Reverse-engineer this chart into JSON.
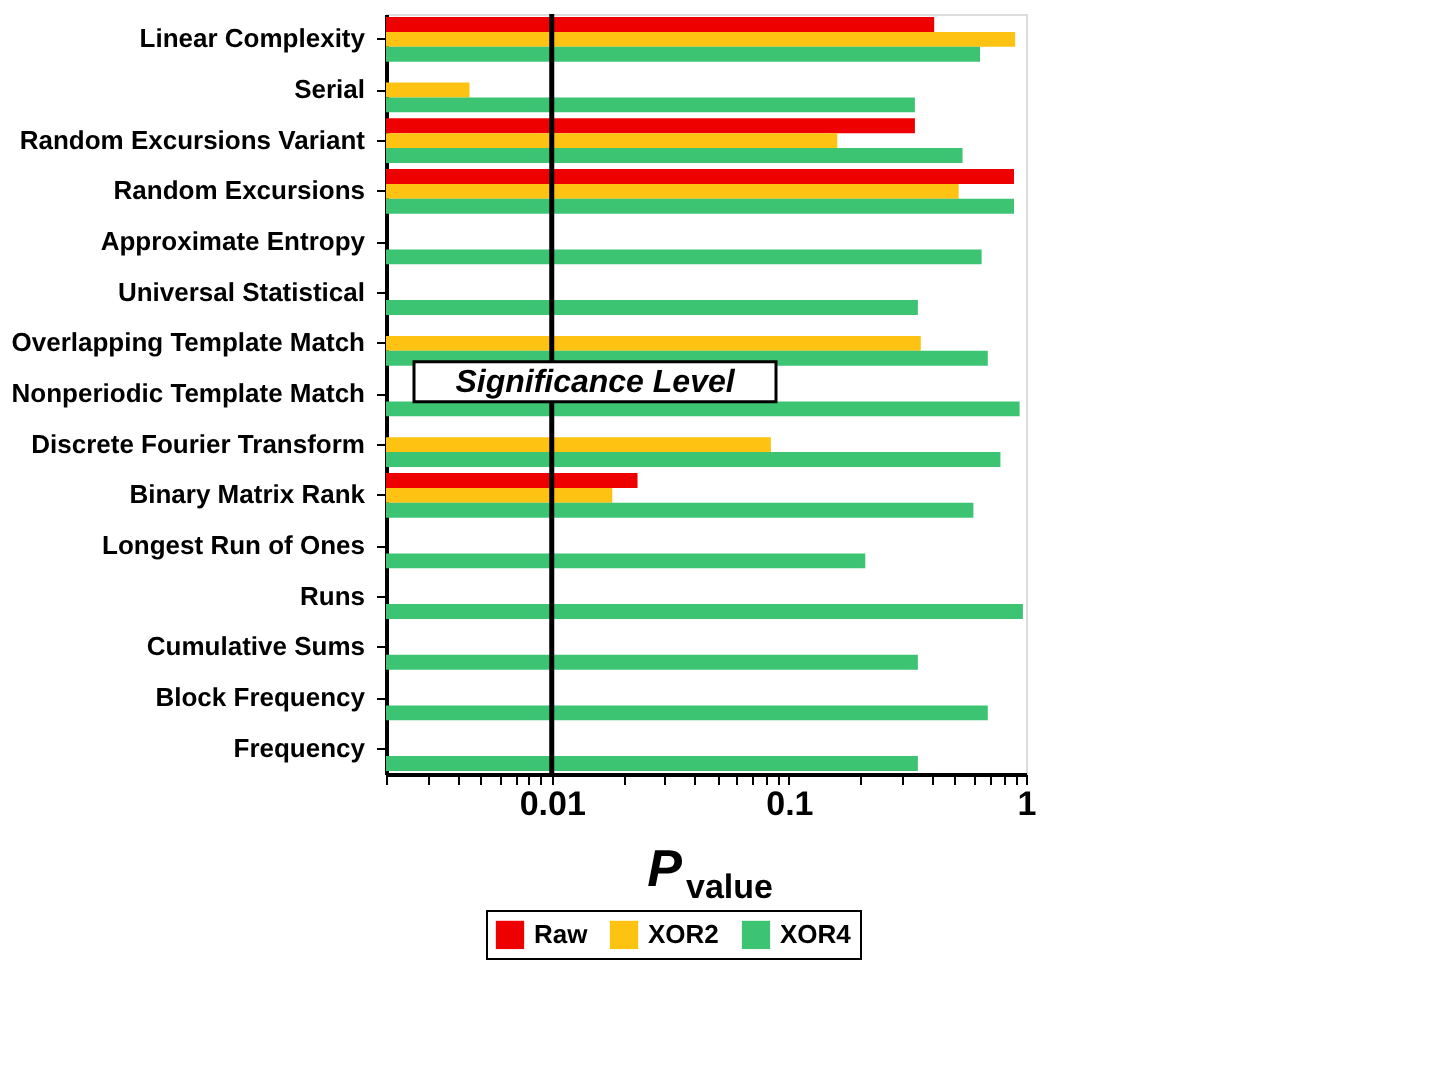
{
  "chart_data": {
    "type": "bar",
    "orientation": "horizontal",
    "log": "x",
    "categories": [
      "Linear Complexity",
      "Serial",
      "Random Excursions Variant",
      "Random Excursions",
      "Approximate Entropy",
      "Universal Statistical",
      "Overlapping Template Match",
      "Nonperiodic Template Match",
      "Discrete Fourier Transform",
      "Binary Matrix Rank",
      "Longest Run of Ones",
      "Runs",
      "Cumulative Sums",
      "Block Frequency",
      "Frequency"
    ],
    "series": [
      {
        "name": "Raw",
        "color": "#ee0000",
        "values": [
          0.41,
          null,
          0.34,
          0.89,
          null,
          null,
          null,
          null,
          null,
          0.023,
          null,
          null,
          null,
          null,
          null
        ]
      },
      {
        "name": "XOR2",
        "color": "#fec312",
        "values": [
          0.9,
          0.0045,
          0.16,
          0.52,
          null,
          null,
          0.36,
          null,
          0.084,
          0.018,
          null,
          null,
          null,
          null,
          null
        ]
      },
      {
        "name": "XOR4",
        "color": "#3dc473",
        "values": [
          0.64,
          0.34,
          0.54,
          0.89,
          0.65,
          0.35,
          0.69,
          0.94,
          0.78,
          0.6,
          0.21,
          0.97,
          0.35,
          0.69,
          0.35
        ]
      }
    ],
    "xlabel": "P$_{value}$",
    "xlim": [
      0.002,
      1
    ],
    "xticks": [
      {
        "value": 0.002,
        "label": null
      },
      {
        "value": 0.003,
        "label": null
      },
      {
        "value": 0.004,
        "label": null
      },
      {
        "value": 0.005,
        "label": null
      },
      {
        "value": 0.006,
        "label": null
      },
      {
        "value": 0.007,
        "label": null
      },
      {
        "value": 0.008,
        "label": null
      },
      {
        "value": 0.009,
        "label": null
      },
      0.01,
      {
        "value": 0.02,
        "label": null
      },
      {
        "value": 0.03,
        "label": null
      },
      {
        "value": 0.04,
        "label": null
      },
      {
        "value": 0.05,
        "label": null
      },
      {
        "value": 0.06,
        "label": null
      },
      {
        "value": 0.07,
        "label": null
      },
      {
        "value": 0.08,
        "label": null
      },
      {
        "value": 0.09,
        "label": null
      },
      0.1,
      {
        "value": 0.2,
        "label": null
      },
      {
        "value": 0.3,
        "label": null
      },
      {
        "value": 0.4,
        "label": null
      },
      {
        "value": 0.5,
        "label": null
      },
      {
        "value": 0.6,
        "label": null
      },
      {
        "value": 0.7,
        "label": null
      },
      {
        "value": 0.8,
        "label": null
      },
      {
        "value": 0.9,
        "label": null
      },
      1
    ],
    "ref_lines": [
      {
        "axis": "x",
        "value": 0.01,
        "label": "Significance Level",
        "color": "#000000"
      }
    ],
    "grid": false,
    "legend": "bottom"
  }
}
